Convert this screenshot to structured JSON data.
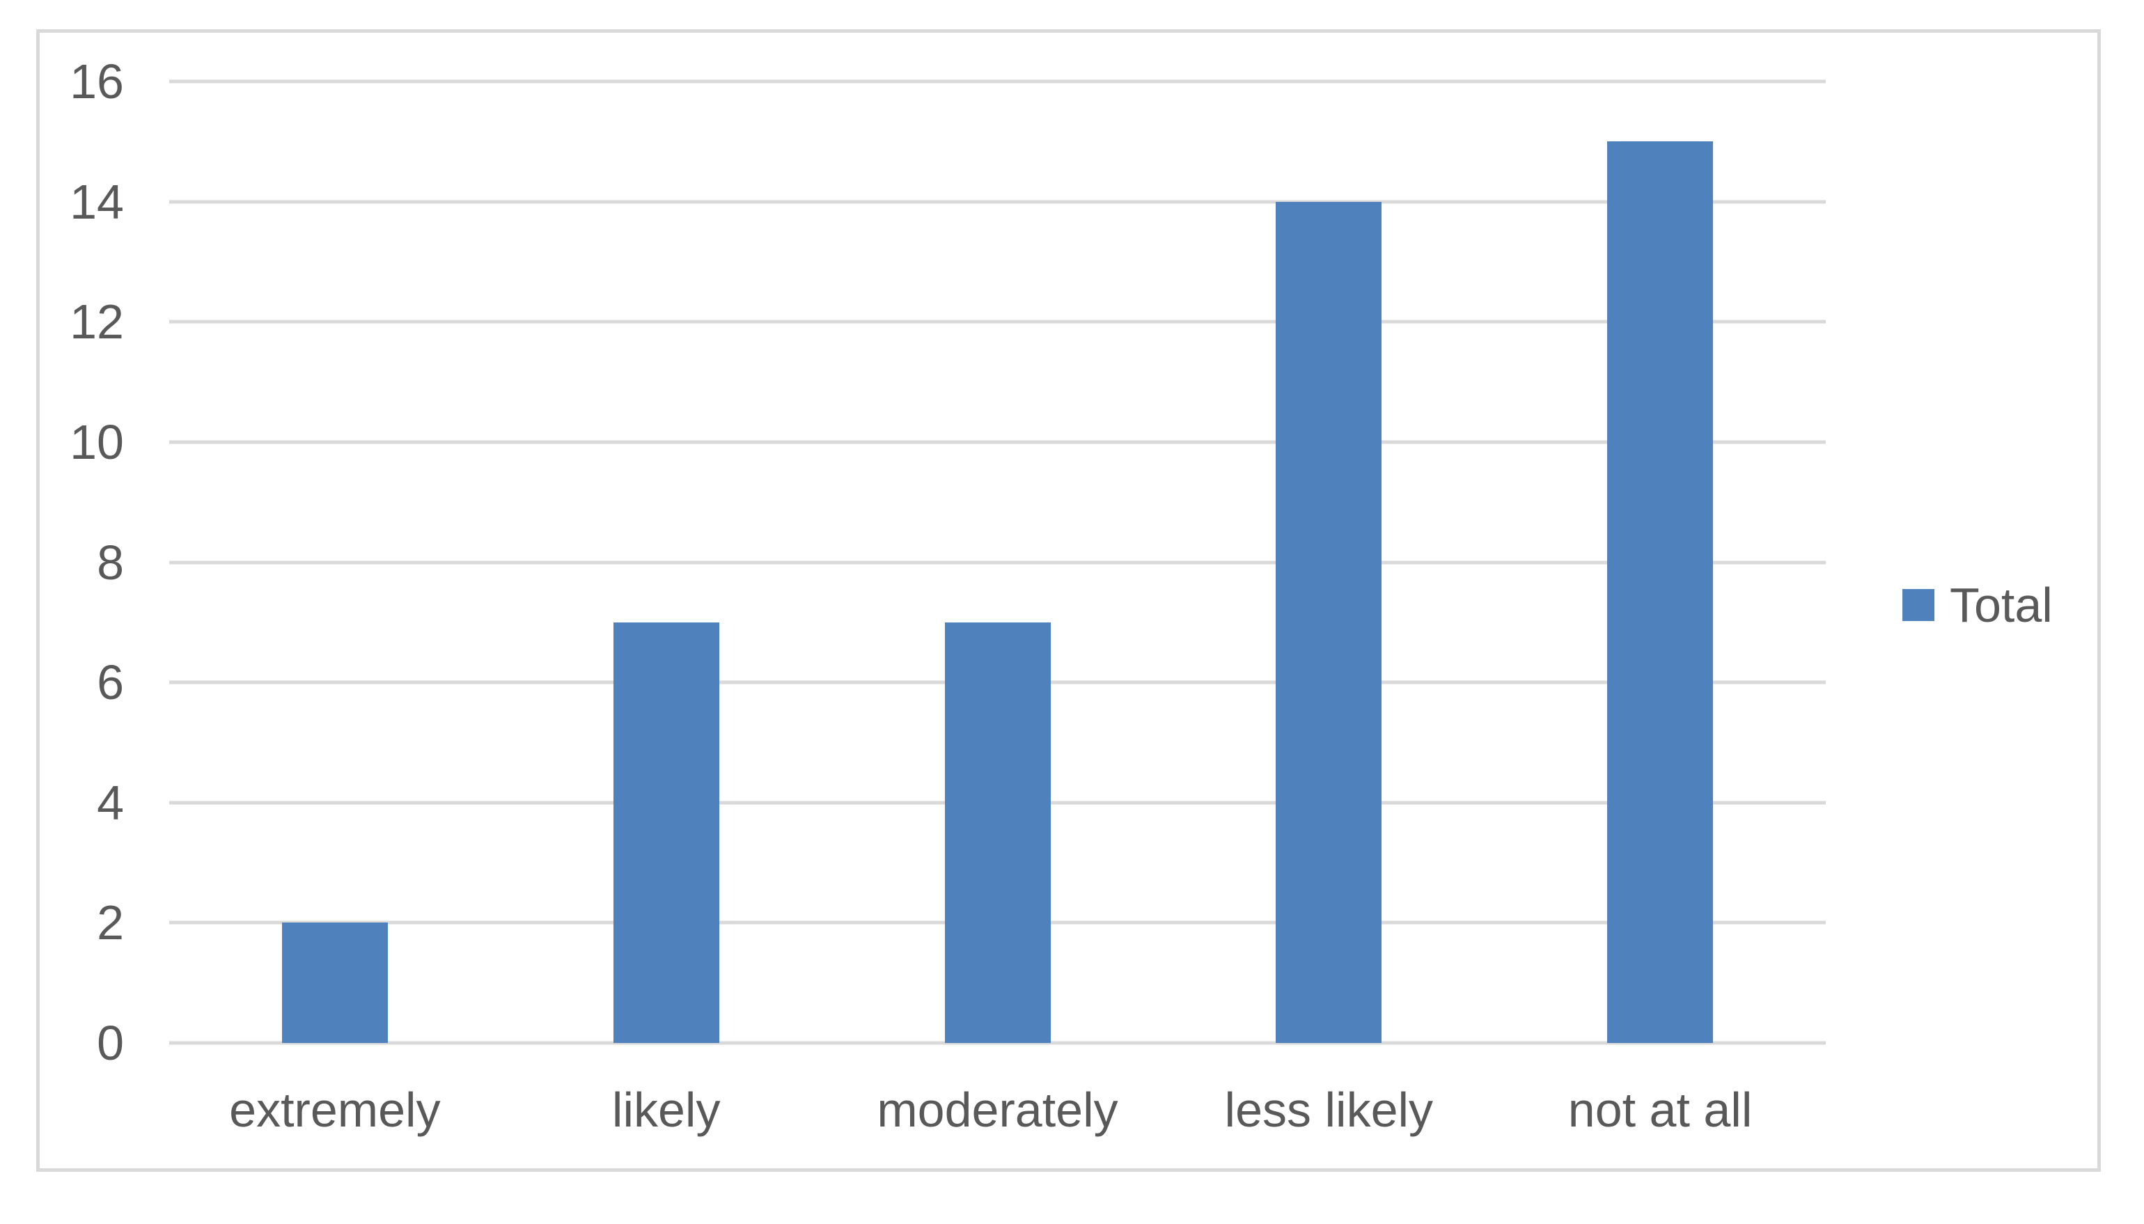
{
  "chart_data": {
    "type": "bar",
    "title": "",
    "xlabel": "",
    "ylabel": "",
    "categories": [
      "extremely",
      "likely",
      "moderately",
      "less likely",
      "not at all"
    ],
    "series": [
      {
        "name": "Total",
        "values": [
          2,
          7,
          7,
          14,
          15
        ]
      }
    ],
    "ylim": [
      0,
      16
    ],
    "ytick_step": 2,
    "yticks": [
      0,
      2,
      4,
      6,
      8,
      10,
      12,
      14,
      16
    ],
    "grid": true,
    "legend_position": "right"
  },
  "legend": {
    "label": "Total"
  },
  "colors": {
    "bar": "#4F81BD",
    "gridline": "#D9D9D9",
    "chart_border": "#D9D9D9",
    "axis_text": "#595959",
    "background": "#FFFFFF"
  }
}
